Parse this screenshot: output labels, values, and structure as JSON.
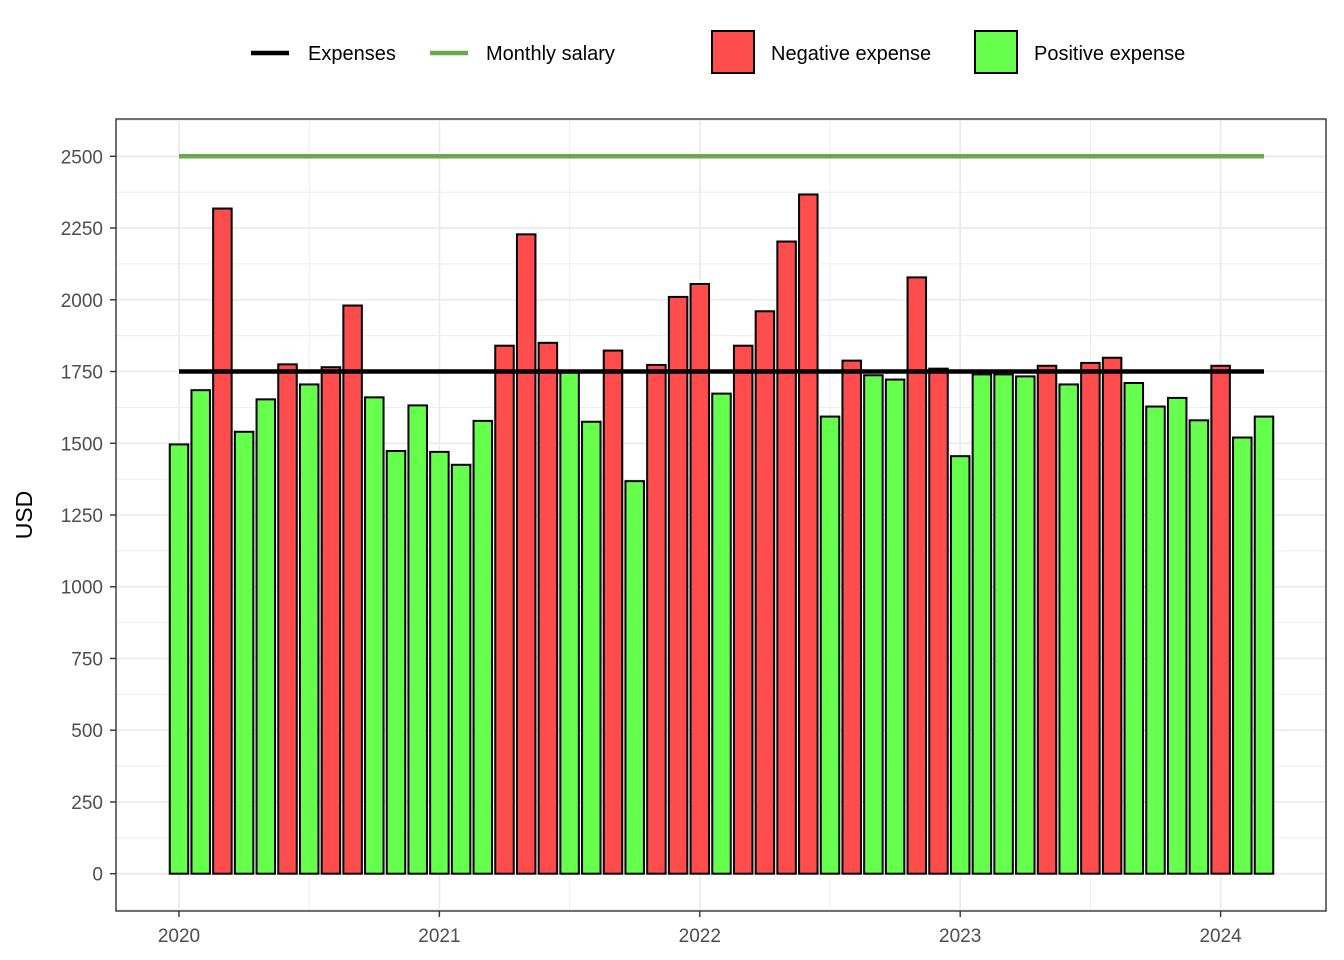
{
  "chart_data": {
    "type": "bar",
    "title": "",
    "xlabel": "",
    "ylabel": "USD",
    "ylim": [
      -130,
      2630
    ],
    "yticks": [
      0,
      250,
      500,
      750,
      1000,
      1250,
      1500,
      1750,
      2000,
      2250,
      2500
    ],
    "xticks": [
      "2020",
      "2021",
      "2022",
      "2023",
      "2024"
    ],
    "grid": true,
    "legend_position": "top",
    "legend": {
      "lines": [
        {
          "name": "Expenses",
          "color": "#000000"
        },
        {
          "name": "Monthly salary",
          "color": "#6aa84f"
        }
      ],
      "fills": [
        {
          "name": "Negative expense",
          "color": "#ff4d4d"
        },
        {
          "name": "Positive expense",
          "color": "#66ff4d"
        }
      ]
    },
    "colors": {
      "negative": "#ff4d4d",
      "positive": "#66ff4d",
      "expenses_line": "#000000",
      "salary_line": "#6aa84f"
    },
    "expenses_line_value": 1750,
    "monthly_salary_value": 2500,
    "x": [
      "2020-01",
      "2020-02",
      "2020-03",
      "2020-04",
      "2020-05",
      "2020-06",
      "2020-07",
      "2020-08",
      "2020-09",
      "2020-10",
      "2020-11",
      "2020-12",
      "2021-01",
      "2021-02",
      "2021-03",
      "2021-04",
      "2021-05",
      "2021-06",
      "2021-07",
      "2021-08",
      "2021-09",
      "2021-10",
      "2021-11",
      "2021-12",
      "2022-01",
      "2022-02",
      "2022-03",
      "2022-04",
      "2022-05",
      "2022-06",
      "2022-07",
      "2022-08",
      "2022-09",
      "2022-10",
      "2022-11",
      "2022-12",
      "2023-01",
      "2023-02",
      "2023-03",
      "2023-04",
      "2023-05",
      "2023-06",
      "2023-07",
      "2023-08",
      "2023-09",
      "2023-10",
      "2023-11",
      "2023-12",
      "2024-01",
      "2024-02",
      "2024-03"
    ],
    "values": [
      1496,
      1685,
      2318,
      1540,
      1653,
      1775,
      1705,
      1765,
      1980,
      1660,
      1473,
      1632,
      1470,
      1425,
      1578,
      1840,
      2228,
      1850,
      1750,
      1575,
      1823,
      1368,
      1773,
      2010,
      2055,
      1673,
      1840,
      1960,
      2203,
      2367,
      1593,
      1788,
      1737,
      1722,
      2078,
      1760,
      1455,
      1740,
      1740,
      1733,
      1770,
      1705,
      1780,
      1798,
      1710,
      1628,
      1658,
      1580,
      1770,
      1520,
      1593
    ]
  }
}
